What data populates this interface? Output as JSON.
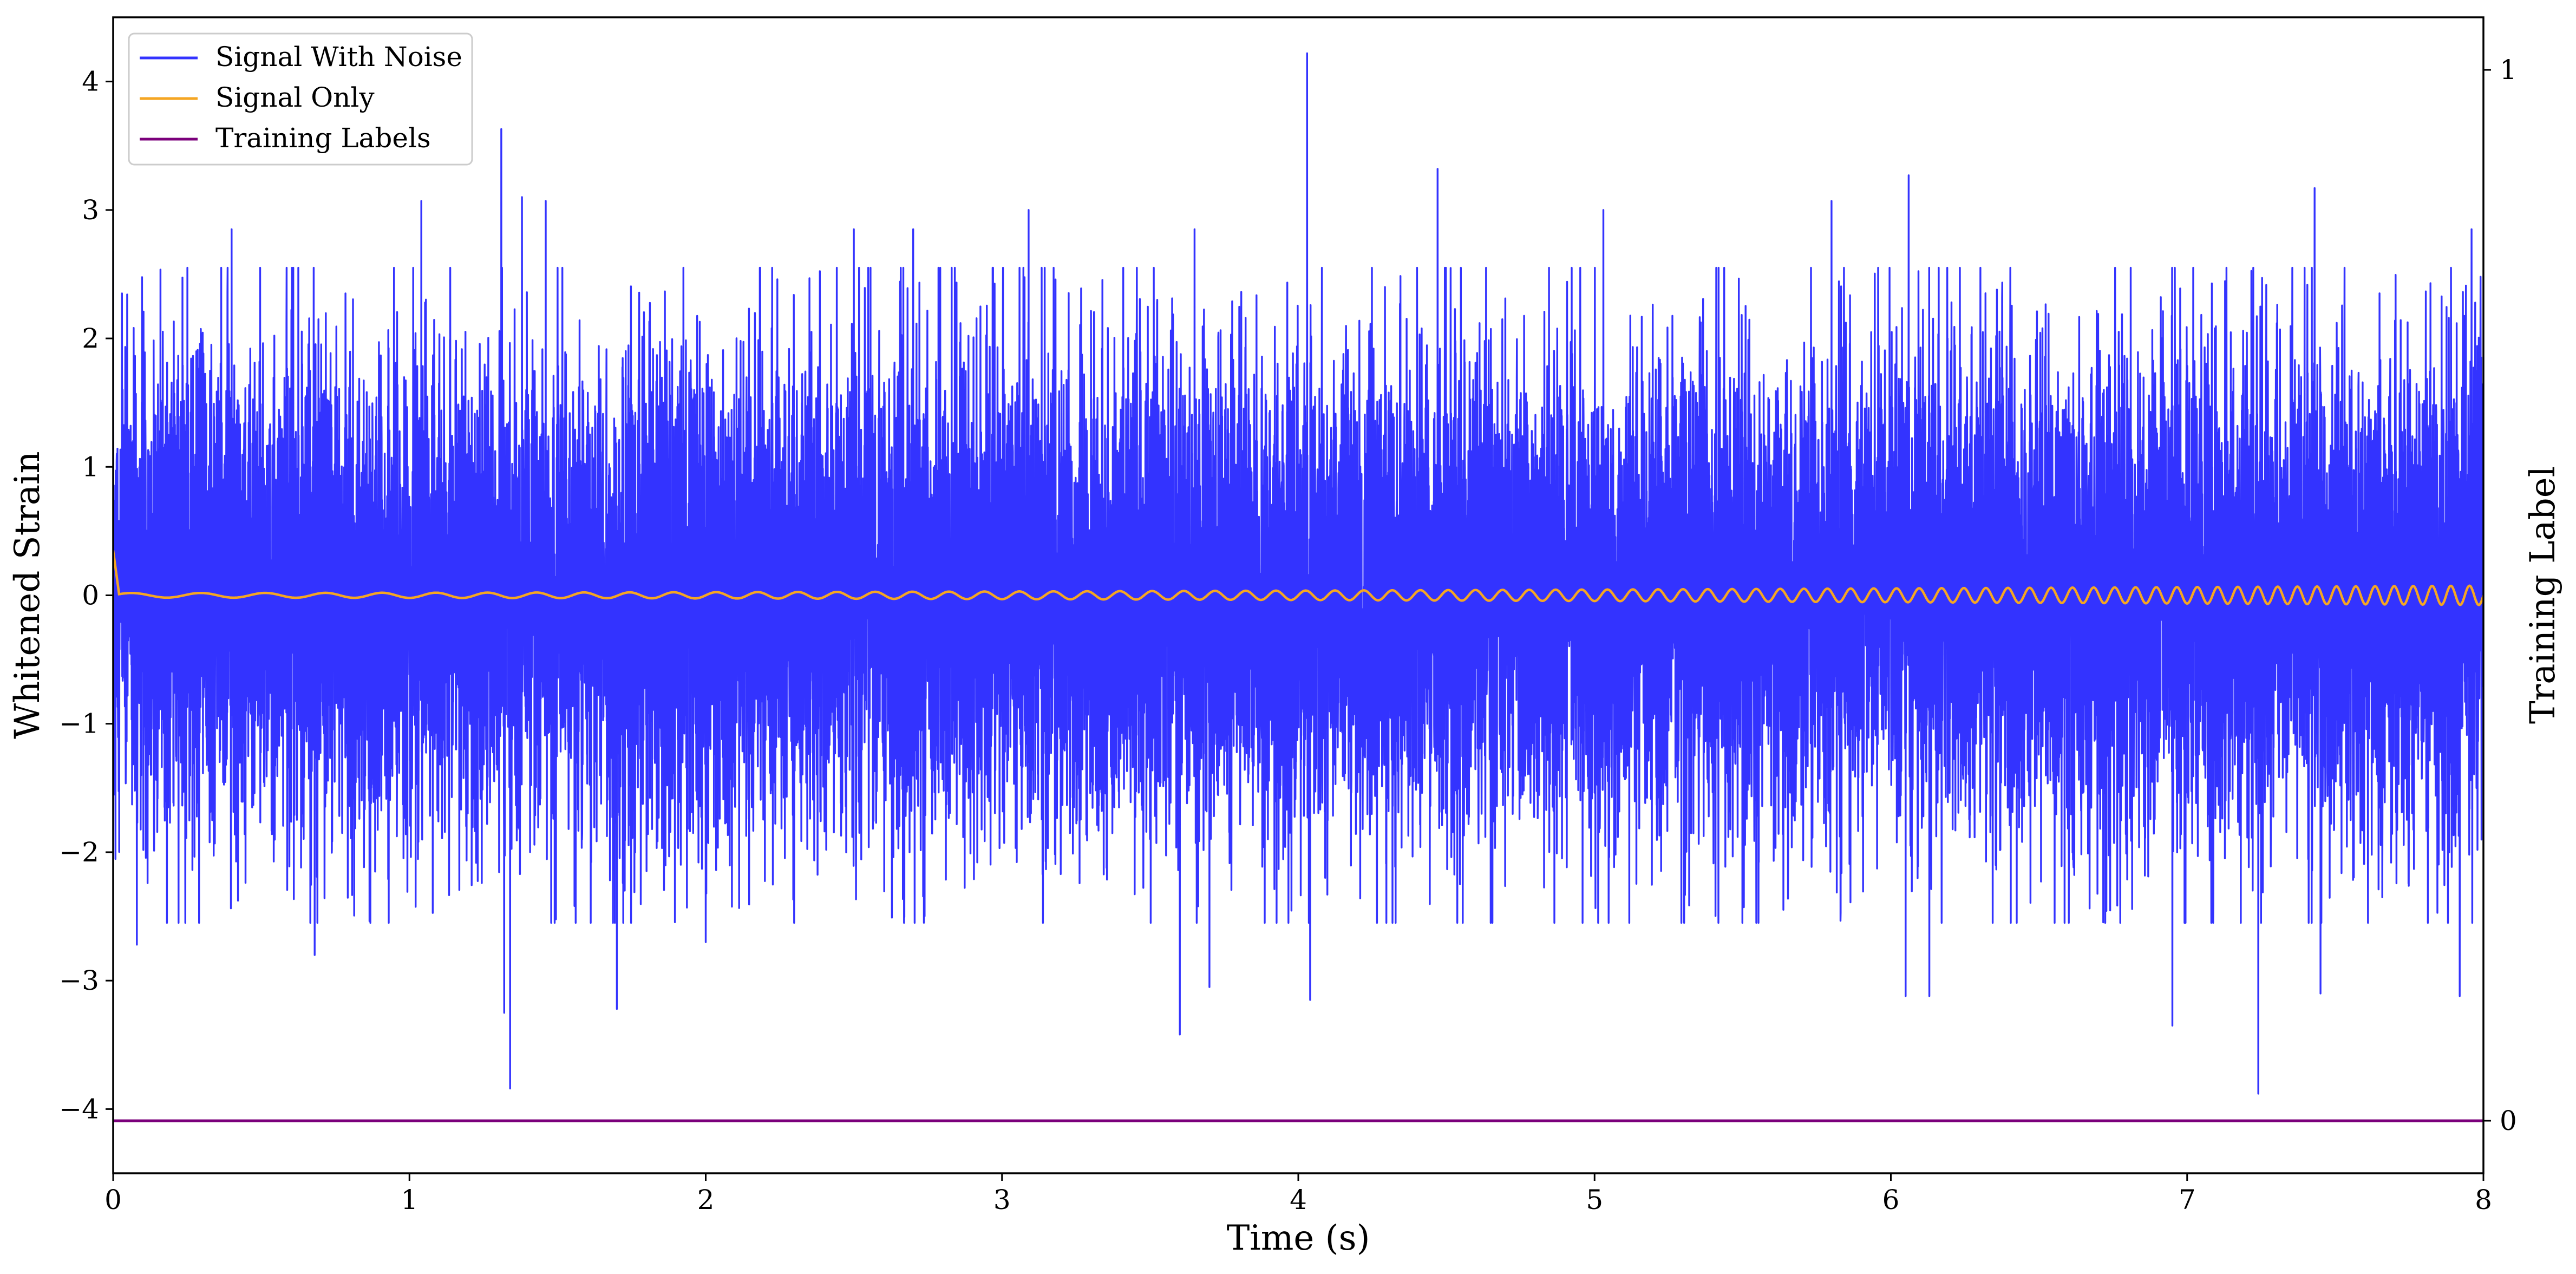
{
  "chart_data": {
    "type": "line",
    "title": "",
    "xlabel": "Time (s)",
    "ylabel": "Whitened Strain",
    "ylabel_right": "Training Label",
    "xlim": [
      0,
      8
    ],
    "ylim": [
      -4.5,
      4.5
    ],
    "ylim_right": [
      -0.05,
      1.05
    ],
    "x_ticks": [
      "0",
      "1",
      "2",
      "3",
      "4",
      "5",
      "6",
      "7",
      "8"
    ],
    "y_ticks": [
      "−4",
      "−3",
      "−2",
      "−1",
      "0",
      "1",
      "2",
      "3",
      "4"
    ],
    "y_ticks_right": [
      "0",
      "1"
    ],
    "grid": false,
    "legend_position": "top-left",
    "series": [
      {
        "name": "Signal With Noise",
        "color": "#3333ff",
        "axis": "left",
        "description_kind": "noise",
        "sample_rate": 2048,
        "x_range": [
          0,
          8
        ],
        "std": 0.95,
        "peaks": [
          {
            "x": 0.0,
            "y": 2.68
          },
          {
            "x": 0.03,
            "y": 2.35
          },
          {
            "x": 0.08,
            "y": -2.72
          },
          {
            "x": 0.4,
            "y": 2.85
          },
          {
            "x": 0.68,
            "y": -2.8
          },
          {
            "x": 1.04,
            "y": 3.07
          },
          {
            "x": 1.31,
            "y": 3.63
          },
          {
            "x": 1.32,
            "y": -3.25
          },
          {
            "x": 1.34,
            "y": -3.84
          },
          {
            "x": 1.38,
            "y": 3.1
          },
          {
            "x": 1.46,
            "y": 3.07
          },
          {
            "x": 1.7,
            "y": -3.22
          },
          {
            "x": 2.0,
            "y": -2.7
          },
          {
            "x": 2.5,
            "y": 2.85
          },
          {
            "x": 2.7,
            "y": 2.85
          },
          {
            "x": 3.09,
            "y": 3.0
          },
          {
            "x": 3.6,
            "y": -3.42
          },
          {
            "x": 3.65,
            "y": 2.85
          },
          {
            "x": 3.7,
            "y": -3.05
          },
          {
            "x": 4.03,
            "y": 4.22
          },
          {
            "x": 4.04,
            "y": -3.15
          },
          {
            "x": 4.47,
            "y": 3.32
          },
          {
            "x": 5.03,
            "y": 3.0
          },
          {
            "x": 5.8,
            "y": 3.07
          },
          {
            "x": 6.06,
            "y": 3.27
          },
          {
            "x": 6.05,
            "y": -3.12
          },
          {
            "x": 6.13,
            "y": -3.12
          },
          {
            "x": 6.95,
            "y": -3.35
          },
          {
            "x": 7.24,
            "y": -3.88
          },
          {
            "x": 7.43,
            "y": 3.17
          },
          {
            "x": 7.45,
            "y": -3.1
          },
          {
            "x": 7.92,
            "y": -3.12
          },
          {
            "x": 7.96,
            "y": 2.85
          },
          {
            "x": 7.99,
            "y": 2.48
          }
        ]
      },
      {
        "name": "Signal Only",
        "color": "#f5a623",
        "axis": "left",
        "description_kind": "chirp",
        "x_range": [
          0,
          8
        ],
        "start_frequency_hz": 4,
        "end_frequency_hz": 16,
        "amplitude_start": 0.018,
        "amplitude_end": 0.075,
        "initial_spike": 0.35
      },
      {
        "name": "Training Labels",
        "color": "#7b007b",
        "axis": "right",
        "x": [
          0,
          8
        ],
        "values": [
          0,
          0
        ]
      }
    ]
  }
}
